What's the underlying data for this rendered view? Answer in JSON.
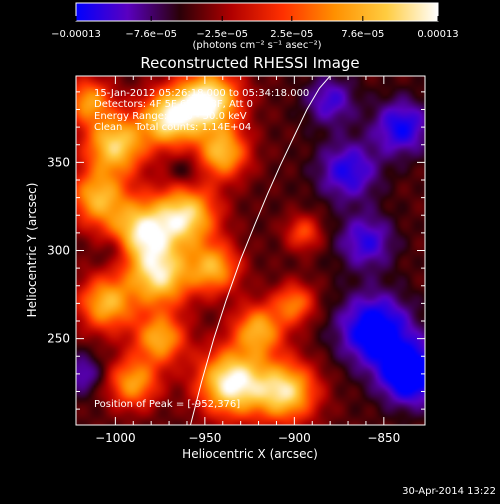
{
  "chart_data": {
    "type": "heatmap",
    "title": "Reconstructed RHESSI Image",
    "xlabel": "Heliocentric X (arcsec)",
    "ylabel": "Heliocentric Y (arcsec)",
    "xlim": [
      -1022,
      -827
    ],
    "ylim": [
      201,
      399
    ],
    "xticks": [
      -1000,
      -950,
      -900,
      -850
    ],
    "xtick_labels": [
      "−1000",
      "−950",
      "−900",
      "−850"
    ],
    "yticks": [
      250,
      300,
      350
    ],
    "ytick_labels": [
      "250",
      "300",
      "350"
    ],
    "colorbar": {
      "min": -0.00013,
      "max": 0.00013,
      "ticks": [
        -0.00013,
        -7.6e-05,
        -2.5e-05,
        2.5e-05,
        7.6e-05,
        0.00013
      ],
      "tick_labels": [
        "−0.00013",
        "−7.6e−05",
        "−2.5e−05",
        "2.5e−05",
        "7.6e−05",
        "0.00013"
      ],
      "unit_label": "(photons cm⁻² s⁻¹ asec⁻²)",
      "colormap": [
        "#0000ff",
        "#5a00c0",
        "#2a0008",
        "#b00000",
        "#ff3000",
        "#ff9000",
        "#ffcc40",
        "#ffffff"
      ]
    },
    "info_lines": [
      "15-Jan-2012 05:26:18.000 to 05:34:18.000",
      "Detectors: 4F 5F 6F 7F 8F, Att 0",
      "Energy Range: 25.0 - 50.0 keV",
      "Clean    Total counts: 1.14E+04"
    ],
    "peak_label": "Position of Peak = [-952,376]",
    "peak_position": [
      -952,
      376
    ],
    "limb_curve": {
      "x": [
        -958,
        -952,
        -945,
        -938,
        -930,
        -922,
        -915,
        -908,
        -900,
        -893,
        -886,
        -880
      ],
      "y": [
        201,
        225,
        250,
        272,
        295,
        315,
        332,
        348,
        365,
        380,
        392,
        399
      ]
    },
    "emission_sources": [
      {
        "x": -948,
        "y": 385,
        "s": 12,
        "v": 1.0
      },
      {
        "x": -970,
        "y": 375,
        "s": 11,
        "v": 0.85
      },
      {
        "x": -1000,
        "y": 360,
        "s": 12,
        "v": 0.75
      },
      {
        "x": -1010,
        "y": 330,
        "s": 11,
        "v": 0.55
      },
      {
        "x": -985,
        "y": 310,
        "s": 13,
        "v": 0.85
      },
      {
        "x": -960,
        "y": 320,
        "s": 12,
        "v": 0.75
      },
      {
        "x": -975,
        "y": 285,
        "s": 12,
        "v": 0.75
      },
      {
        "x": -945,
        "y": 290,
        "s": 10,
        "v": 0.55
      },
      {
        "x": -1005,
        "y": 270,
        "s": 11,
        "v": 0.6
      },
      {
        "x": -975,
        "y": 250,
        "s": 10,
        "v": 0.55
      },
      {
        "x": -935,
        "y": 225,
        "s": 13,
        "v": 1.0
      },
      {
        "x": -905,
        "y": 220,
        "s": 12,
        "v": 0.8
      },
      {
        "x": -990,
        "y": 225,
        "s": 10,
        "v": 0.5
      },
      {
        "x": -920,
        "y": 255,
        "s": 10,
        "v": 0.55
      },
      {
        "x": -900,
        "y": 270,
        "s": 8,
        "v": 0.35
      },
      {
        "x": -895,
        "y": 310,
        "s": 7,
        "v": 0.2
      },
      {
        "x": -1015,
        "y": 385,
        "s": 9,
        "v": 0.45
      },
      {
        "x": -940,
        "y": 355,
        "s": 10,
        "v": 0.6
      },
      {
        "x": -870,
        "y": 345,
        "s": 12,
        "v": -0.55
      },
      {
        "x": -855,
        "y": 255,
        "s": 14,
        "v": -0.8
      },
      {
        "x": -835,
        "y": 230,
        "s": 12,
        "v": -0.9
      },
      {
        "x": -860,
        "y": 305,
        "s": 11,
        "v": -0.5
      },
      {
        "x": -880,
        "y": 385,
        "s": 10,
        "v": -0.45
      },
      {
        "x": -840,
        "y": 370,
        "s": 11,
        "v": -0.6
      },
      {
        "x": -1000,
        "y": 300,
        "s": 7,
        "v": -0.35
      },
      {
        "x": -1018,
        "y": 230,
        "s": 8,
        "v": -0.4
      },
      {
        "x": -960,
        "y": 345,
        "s": 6,
        "v": -0.25
      }
    ]
  },
  "footer": {
    "timestamp": "30-Apr-2014 13:22"
  }
}
